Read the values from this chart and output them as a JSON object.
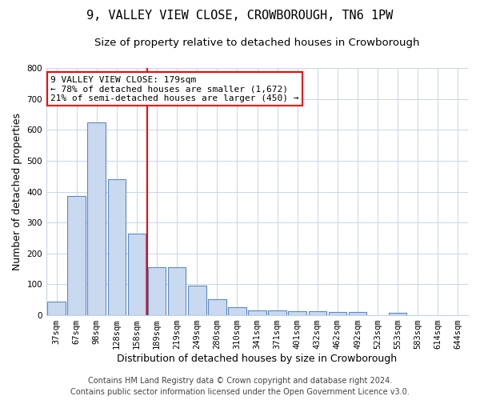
{
  "title": "9, VALLEY VIEW CLOSE, CROWBOROUGH, TN6 1PW",
  "subtitle": "Size of property relative to detached houses in Crowborough",
  "xlabel": "Distribution of detached houses by size in Crowborough",
  "ylabel": "Number of detached properties",
  "bar_labels": [
    "37sqm",
    "67sqm",
    "98sqm",
    "128sqm",
    "158sqm",
    "189sqm",
    "219sqm",
    "249sqm",
    "280sqm",
    "310sqm",
    "341sqm",
    "371sqm",
    "401sqm",
    "432sqm",
    "462sqm",
    "492sqm",
    "523sqm",
    "553sqm",
    "583sqm",
    "614sqm",
    "644sqm"
  ],
  "bar_values": [
    45,
    385,
    625,
    440,
    265,
    155,
    155,
    97,
    52,
    27,
    15,
    15,
    13,
    13,
    11,
    10,
    0,
    7,
    0,
    0,
    0
  ],
  "bar_color": "#c9d9f0",
  "bar_edge_color": "#5b8ac5",
  "ref_line_x": 4.5,
  "ylim": [
    0,
    800
  ],
  "yticks": [
    0,
    100,
    200,
    300,
    400,
    500,
    600,
    700,
    800
  ],
  "annotation_title": "9 VALLEY VIEW CLOSE: 179sqm",
  "annotation_line1": "← 78% of detached houses are smaller (1,672)",
  "annotation_line2": "21% of semi-detached houses are larger (450) →",
  "footer1": "Contains HM Land Registry data © Crown copyright and database right 2024.",
  "footer2": "Contains public sector information licensed under the Open Government Licence v3.0.",
  "bg_color": "#ffffff",
  "grid_color": "#c8d4e8",
  "title_fontsize": 11,
  "subtitle_fontsize": 9.5,
  "axis_label_fontsize": 9,
  "tick_fontsize": 7.5,
  "annotation_fontsize": 8,
  "footer_fontsize": 7
}
